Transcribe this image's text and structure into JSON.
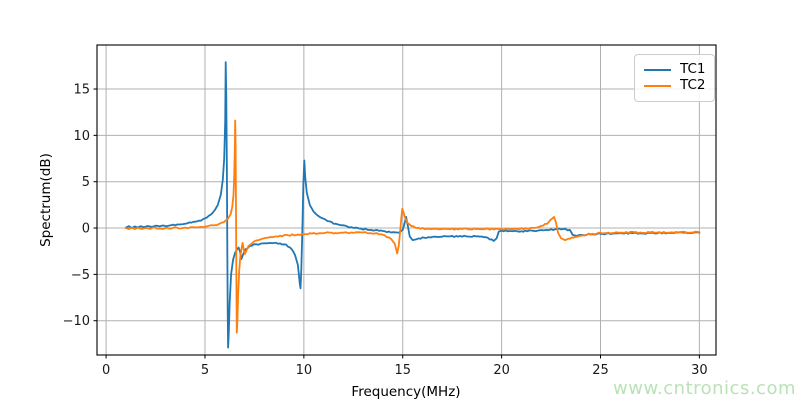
{
  "chart_data": {
    "type": "line",
    "title": "",
    "xlabel": "Frequency(MHz)",
    "ylabel": "Spectrum(dB)",
    "xlim": [
      -0.46,
      30.84
    ],
    "ylim": [
      -13.7,
      19.75
    ],
    "grid": true,
    "legend_position": "upper right",
    "xticks": [
      {
        "v": 0,
        "label": "0"
      },
      {
        "v": 5,
        "label": "5"
      },
      {
        "v": 10,
        "label": "10"
      },
      {
        "v": 15,
        "label": "15"
      },
      {
        "v": 20,
        "label": "20"
      },
      {
        "v": 25,
        "label": "25"
      },
      {
        "v": 30,
        "label": "30"
      }
    ],
    "yticks": [
      {
        "v": -10,
        "label": "−10"
      },
      {
        "v": -5,
        "label": "−5"
      },
      {
        "v": 0,
        "label": "0"
      },
      {
        "v": 5,
        "label": "5"
      },
      {
        "v": 10,
        "label": "10"
      },
      {
        "v": 15,
        "label": "15"
      }
    ],
    "series": [
      {
        "name": "TC1",
        "color": "#1f77b4",
        "points": [
          [
            1.0,
            0.05
          ],
          [
            1.15,
            0.2
          ],
          [
            1.3,
            0.0
          ],
          [
            1.45,
            0.18
          ],
          [
            1.6,
            0.05
          ],
          [
            1.75,
            0.2
          ],
          [
            1.9,
            0.1
          ],
          [
            2.1,
            0.22
          ],
          [
            2.3,
            0.12
          ],
          [
            2.5,
            0.25
          ],
          [
            2.7,
            0.18
          ],
          [
            2.9,
            0.28
          ],
          [
            3.1,
            0.22
          ],
          [
            3.3,
            0.32
          ],
          [
            3.5,
            0.3
          ],
          [
            3.7,
            0.38
          ],
          [
            3.9,
            0.42
          ],
          [
            4.1,
            0.5
          ],
          [
            4.3,
            0.58
          ],
          [
            4.5,
            0.68
          ],
          [
            4.7,
            0.8
          ],
          [
            4.9,
            0.95
          ],
          [
            5.1,
            1.15
          ],
          [
            5.3,
            1.45
          ],
          [
            5.5,
            1.95
          ],
          [
            5.65,
            2.5
          ],
          [
            5.8,
            3.6
          ],
          [
            5.9,
            5.2
          ],
          [
            5.97,
            7.5
          ],
          [
            6.02,
            11.5
          ],
          [
            6.05,
            17.9
          ],
          [
            6.08,
            14.0
          ],
          [
            6.11,
            6.0
          ],
          [
            6.13,
            -2.0
          ],
          [
            6.15,
            -9.0
          ],
          [
            6.17,
            -12.9
          ],
          [
            6.2,
            -11.5
          ],
          [
            6.25,
            -8.0
          ],
          [
            6.32,
            -5.0
          ],
          [
            6.42,
            -3.4
          ],
          [
            6.52,
            -2.7
          ],
          [
            6.62,
            -2.3
          ],
          [
            6.7,
            -2.1
          ],
          [
            6.78,
            -2.6
          ],
          [
            6.84,
            -3.35
          ],
          [
            6.92,
            -2.9
          ],
          [
            7.05,
            -2.3
          ],
          [
            7.25,
            -1.95
          ],
          [
            7.6,
            -1.75
          ],
          [
            8.0,
            -1.65
          ],
          [
            8.5,
            -1.6
          ],
          [
            9.0,
            -1.75
          ],
          [
            9.3,
            -2.1
          ],
          [
            9.55,
            -2.9
          ],
          [
            9.7,
            -4.0
          ],
          [
            9.79,
            -5.9
          ],
          [
            9.83,
            -6.5
          ],
          [
            9.87,
            -4.5
          ],
          [
            9.92,
            -0.5
          ],
          [
            9.97,
            4.5
          ],
          [
            10.02,
            7.3
          ],
          [
            10.07,
            5.5
          ],
          [
            10.15,
            3.8
          ],
          [
            10.3,
            2.5
          ],
          [
            10.5,
            1.75
          ],
          [
            10.8,
            1.2
          ],
          [
            11.2,
            0.75
          ],
          [
            11.7,
            0.4
          ],
          [
            12.2,
            0.15
          ],
          [
            12.8,
            -0.05
          ],
          [
            13.4,
            -0.2
          ],
          [
            14.0,
            -0.32
          ],
          [
            14.5,
            -0.45
          ],
          [
            14.8,
            -0.5
          ],
          [
            15.0,
            -0.2
          ],
          [
            15.1,
            0.55
          ],
          [
            15.17,
            1.2
          ],
          [
            15.26,
            0.2
          ],
          [
            15.35,
            -0.9
          ],
          [
            15.5,
            -1.3
          ],
          [
            15.7,
            -1.2
          ],
          [
            16.1,
            -1.05
          ],
          [
            16.7,
            -0.95
          ],
          [
            17.4,
            -0.9
          ],
          [
            18.2,
            -0.88
          ],
          [
            18.9,
            -0.92
          ],
          [
            19.3,
            -1.05
          ],
          [
            19.6,
            -1.4
          ],
          [
            19.75,
            -1.1
          ],
          [
            19.85,
            -0.4
          ],
          [
            20.0,
            -0.28
          ],
          [
            20.5,
            -0.33
          ],
          [
            21.0,
            -0.35
          ],
          [
            21.6,
            -0.3
          ],
          [
            22.2,
            -0.22
          ],
          [
            22.7,
            -0.15
          ],
          [
            23.1,
            -0.12
          ],
          [
            23.45,
            -0.2
          ],
          [
            23.6,
            -0.75
          ],
          [
            23.8,
            -0.85
          ],
          [
            24.1,
            -0.75
          ],
          [
            24.5,
            -0.68
          ],
          [
            25.0,
            -0.62
          ],
          [
            25.8,
            -0.58
          ],
          [
            26.6,
            -0.56
          ],
          [
            27.5,
            -0.55
          ],
          [
            28.4,
            -0.52
          ],
          [
            29.2,
            -0.5
          ],
          [
            30.0,
            -0.5
          ]
        ]
      },
      {
        "name": "TC2",
        "color": "#ff7f0e",
        "points": [
          [
            1.0,
            0.0
          ],
          [
            1.15,
            -0.12
          ],
          [
            1.3,
            0.05
          ],
          [
            1.45,
            -0.1
          ],
          [
            1.6,
            0.02
          ],
          [
            1.8,
            -0.1
          ],
          [
            2.0,
            0.0
          ],
          [
            2.25,
            -0.08
          ],
          [
            2.5,
            0.02
          ],
          [
            2.75,
            -0.06
          ],
          [
            3.0,
            0.0
          ],
          [
            3.3,
            -0.05
          ],
          [
            3.6,
            0.02
          ],
          [
            3.9,
            0.0
          ],
          [
            4.2,
            0.04
          ],
          [
            4.5,
            0.08
          ],
          [
            4.8,
            0.12
          ],
          [
            5.1,
            0.18
          ],
          [
            5.4,
            0.28
          ],
          [
            5.7,
            0.42
          ],
          [
            5.95,
            0.62
          ],
          [
            6.15,
            0.95
          ],
          [
            6.3,
            1.5
          ],
          [
            6.38,
            2.3
          ],
          [
            6.44,
            3.6
          ],
          [
            6.48,
            5.5
          ],
          [
            6.51,
            8.5
          ],
          [
            6.53,
            11.6
          ],
          [
            6.55,
            9.0
          ],
          [
            6.57,
            2.0
          ],
          [
            6.59,
            -6.0
          ],
          [
            6.61,
            -11.3
          ],
          [
            6.64,
            -10.0
          ],
          [
            6.68,
            -7.0
          ],
          [
            6.73,
            -4.6
          ],
          [
            6.79,
            -3.0
          ],
          [
            6.85,
            -2.2
          ],
          [
            6.9,
            -1.6
          ],
          [
            6.96,
            -2.3
          ],
          [
            7.02,
            -2.8
          ],
          [
            7.1,
            -2.4
          ],
          [
            7.2,
            -1.95
          ],
          [
            7.4,
            -1.6
          ],
          [
            7.7,
            -1.3
          ],
          [
            8.1,
            -1.05
          ],
          [
            8.6,
            -0.9
          ],
          [
            9.2,
            -0.78
          ],
          [
            10.0,
            -0.65
          ],
          [
            11.0,
            -0.55
          ],
          [
            12.0,
            -0.5
          ],
          [
            13.0,
            -0.48
          ],
          [
            13.6,
            -0.58
          ],
          [
            14.1,
            -0.8
          ],
          [
            14.4,
            -1.15
          ],
          [
            14.6,
            -1.7
          ],
          [
            14.72,
            -2.75
          ],
          [
            14.8,
            -1.9
          ],
          [
            14.87,
            -0.3
          ],
          [
            14.93,
            1.2
          ],
          [
            14.98,
            2.1
          ],
          [
            15.04,
            1.7
          ],
          [
            15.12,
            1.1
          ],
          [
            15.25,
            0.55
          ],
          [
            15.45,
            0.2
          ],
          [
            15.7,
            0.0
          ],
          [
            16.2,
            -0.1
          ],
          [
            17.0,
            -0.12
          ],
          [
            18.0,
            -0.1
          ],
          [
            19.0,
            -0.12
          ],
          [
            20.0,
            -0.12
          ],
          [
            20.8,
            -0.1
          ],
          [
            21.4,
            -0.05
          ],
          [
            21.9,
            0.12
          ],
          [
            22.3,
            0.45
          ],
          [
            22.55,
            1.0
          ],
          [
            22.65,
            1.2
          ],
          [
            22.75,
            0.6
          ],
          [
            22.85,
            -0.5
          ],
          [
            23.0,
            -1.1
          ],
          [
            23.2,
            -1.3
          ],
          [
            23.45,
            -1.15
          ],
          [
            23.75,
            -0.95
          ],
          [
            24.1,
            -0.78
          ],
          [
            24.6,
            -0.62
          ],
          [
            25.2,
            -0.55
          ],
          [
            26.0,
            -0.5
          ],
          [
            27.0,
            -0.48
          ],
          [
            28.0,
            -0.46
          ],
          [
            29.0,
            -0.46
          ],
          [
            30.0,
            -0.45
          ]
        ]
      }
    ],
    "style": {
      "grid_color": "#b0b0b0",
      "axis_color": "#000000",
      "tick_label_color": "#1a1a1a",
      "line_width": 1.8
    }
  },
  "watermark": {
    "text": "www.cntronics.com",
    "color": "#bae2b6"
  }
}
